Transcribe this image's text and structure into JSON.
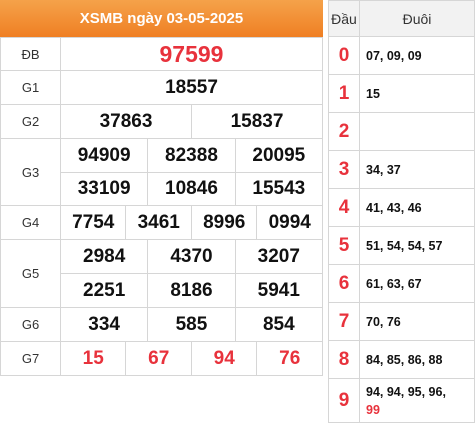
{
  "header": {
    "title": "XSMB ngày 03-05-2025"
  },
  "prizes": [
    {
      "label": "ĐB",
      "rows": [
        [
          "97599"
        ]
      ]
    },
    {
      "label": "G1",
      "rows": [
        [
          "18557"
        ]
      ]
    },
    {
      "label": "G2",
      "rows": [
        [
          "37863",
          "15837"
        ]
      ]
    },
    {
      "label": "G3",
      "rows": [
        [
          "94909",
          "82388",
          "20095"
        ],
        [
          "33109",
          "10846",
          "15543"
        ]
      ]
    },
    {
      "label": "G4",
      "rows": [
        [
          "7754",
          "3461",
          "8996",
          "0994"
        ]
      ]
    },
    {
      "label": "G5",
      "rows": [
        [
          "2984",
          "4370",
          "3207"
        ],
        [
          "2251",
          "8186",
          "5941"
        ]
      ]
    },
    {
      "label": "G6",
      "rows": [
        [
          "334",
          "585",
          "854"
        ]
      ]
    },
    {
      "label": "G7",
      "rows": [
        [
          "15",
          "67",
          "94",
          "76"
        ]
      ]
    }
  ],
  "loto": {
    "col_head": "Đầu",
    "col_tail": "Đuôi",
    "rows": [
      {
        "head": "0",
        "tail": "07, 09, 09",
        "special": ""
      },
      {
        "head": "1",
        "tail": "15",
        "special": ""
      },
      {
        "head": "2",
        "tail": "",
        "special": ""
      },
      {
        "head": "3",
        "tail": "34, 37",
        "special": ""
      },
      {
        "head": "4",
        "tail": "41, 43, 46",
        "special": ""
      },
      {
        "head": "5",
        "tail": "51, 54, 54, 57",
        "special": ""
      },
      {
        "head": "6",
        "tail": "61, 63, 67",
        "special": ""
      },
      {
        "head": "7",
        "tail": "70, 76",
        "special": ""
      },
      {
        "head": "8",
        "tail": "84, 85, 86, 88",
        "special": ""
      },
      {
        "head": "9",
        "tail": "94, 94, 95, 96,",
        "special": "99"
      }
    ]
  },
  "colors": {
    "header_bg": "#ef7f23",
    "accent_red": "#e8323c"
  }
}
